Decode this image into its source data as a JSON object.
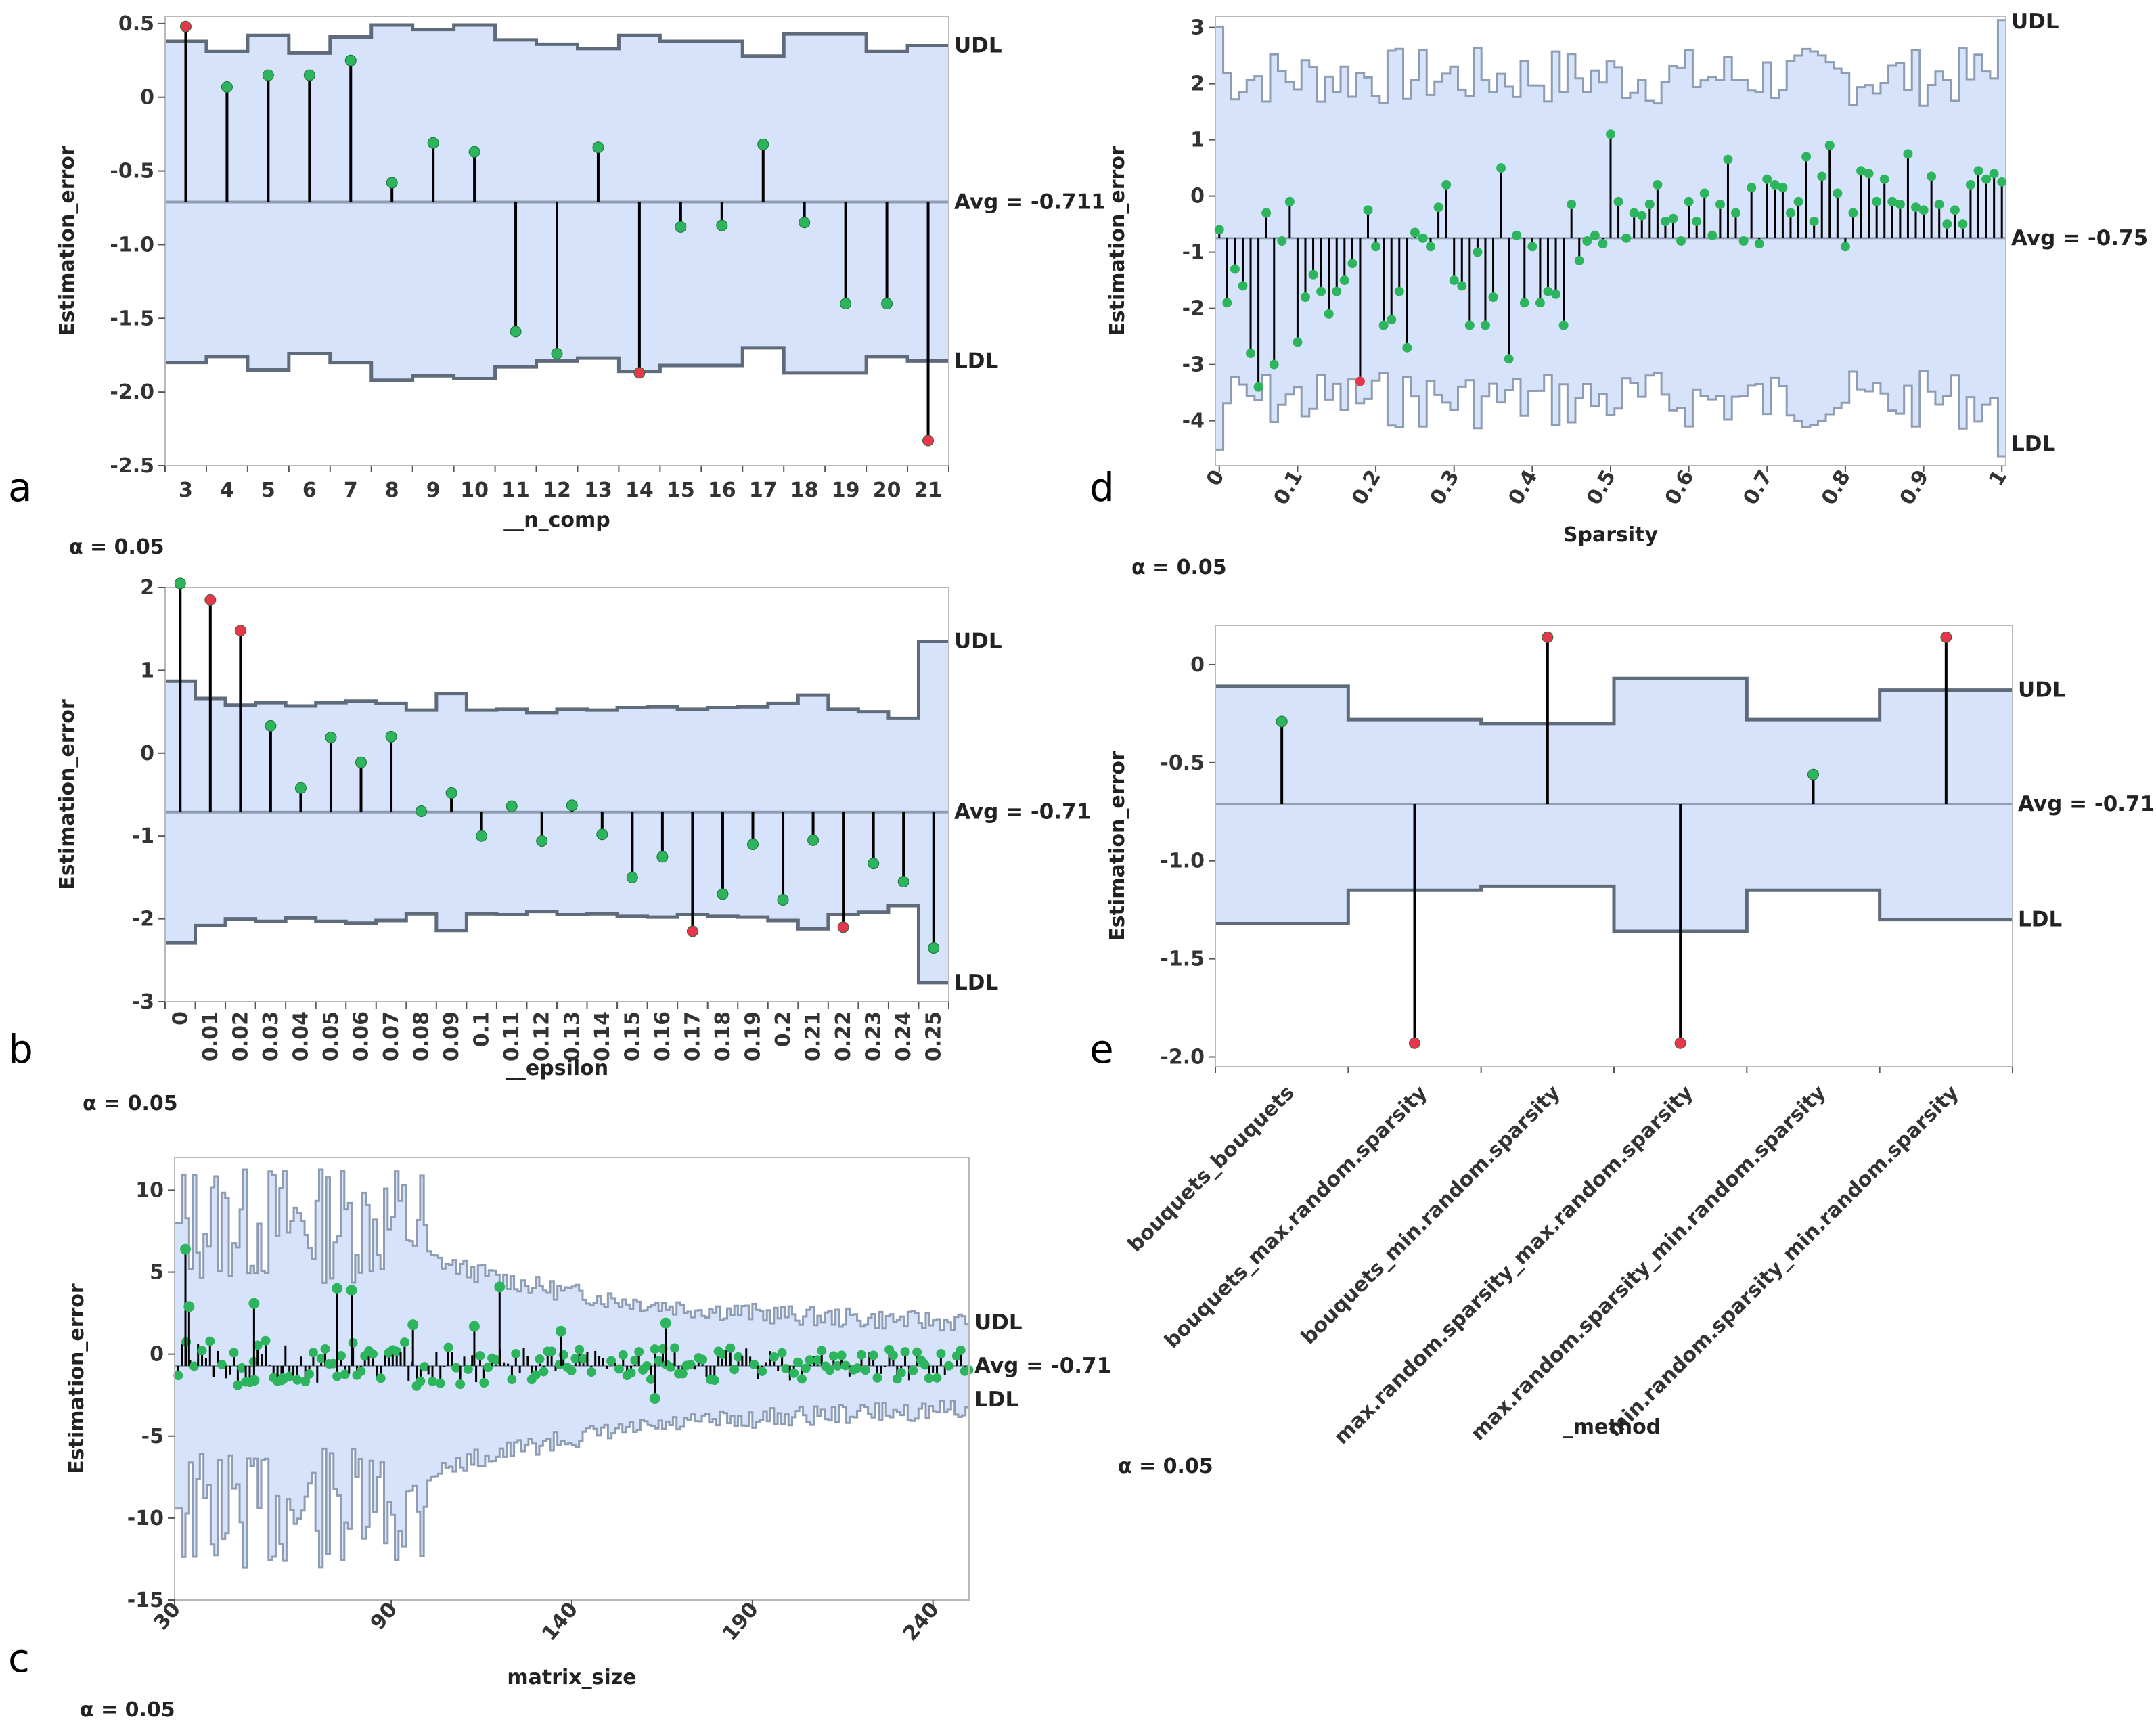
{
  "chart_data": [
    {
      "type": "line",
      "subtype": "control-chart-needle",
      "panel": "a",
      "xlabel": "__n_comp",
      "ylabel": "Estimation_error",
      "alpha_label": "α = 0.05",
      "avg_label": "Avg = -0.711",
      "udl_label": "UDL",
      "ldl_label": "LDL",
      "avg": -0.711,
      "ylim": [
        -2.5,
        0.55
      ],
      "yticks": [
        0.5,
        0,
        -0.5,
        -1.0,
        -1.5,
        -2.0,
        -2.5
      ],
      "ytick_labels": [
        "0.5",
        "0",
        "-0.5",
        "-1.0",
        "-1.5",
        "-2.0",
        "-2.5"
      ],
      "categories": [
        "3",
        "4",
        "5",
        "6",
        "7",
        "8",
        "9",
        "10",
        "11",
        "12",
        "13",
        "14",
        "15",
        "16",
        "17",
        "18",
        "19",
        "20",
        "21"
      ],
      "values": [
        0.48,
        0.07,
        0.15,
        0.15,
        0.25,
        -0.58,
        -0.31,
        -0.37,
        -1.59,
        -1.74,
        -0.34,
        -1.87,
        -0.88,
        -0.87,
        -0.32,
        -0.85,
        -1.4,
        -1.4,
        -2.33
      ],
      "udl": [
        0.38,
        0.31,
        0.42,
        0.3,
        0.41,
        0.49,
        0.46,
        0.49,
        0.39,
        0.36,
        0.33,
        0.42,
        0.38,
        0.38,
        0.28,
        0.43,
        0.43,
        0.31,
        0.35
      ],
      "ldl": [
        -1.8,
        -1.76,
        -1.85,
        -1.74,
        -1.8,
        -1.92,
        -1.89,
        -1.91,
        -1.83,
        -1.79,
        -1.77,
        -1.86,
        -1.82,
        -1.82,
        -1.7,
        -1.87,
        -1.87,
        -1.76,
        -1.79
      ],
      "colors": {
        "point": "#2db55d",
        "alarm": "#e8364b",
        "fill": "#d7e3fb",
        "limit": "#5f6b7a",
        "avg": "#8e9db2"
      }
    },
    {
      "type": "line",
      "subtype": "control-chart-needle",
      "panel": "b",
      "xlabel": "__epsilon",
      "ylabel": "Estimation_error",
      "alpha_label": "α = 0.05",
      "avg_label": "Avg = -0.71",
      "udl_label": "UDL",
      "ldl_label": "LDL",
      "avg": -0.71,
      "ylim": [
        -3.0,
        2.0
      ],
      "yticks": [
        2,
        1,
        0,
        -1,
        -2,
        -3
      ],
      "ytick_labels": [
        "2",
        "1",
        "0",
        "-1",
        "-2",
        "-3"
      ],
      "categories": [
        "0",
        "0.01",
        "0.02",
        "0.03",
        "0.04",
        "0.05",
        "0.06",
        "0.07",
        "0.08",
        "0.09",
        "0.1",
        "0.11",
        "0.12",
        "0.13",
        "0.14",
        "0.15",
        "0.16",
        "0.17",
        "0.18",
        "0.19",
        "0.2",
        "0.21",
        "0.22",
        "0.23",
        "0.24",
        "0.25"
      ],
      "values": [
        2.05,
        1.85,
        1.48,
        0.33,
        -0.42,
        0.19,
        -0.11,
        0.2,
        -0.7,
        -0.48,
        -1.0,
        -0.64,
        -1.06,
        -0.63,
        -0.98,
        -1.5,
        -1.25,
        -2.15,
        -1.7,
        -1.1,
        -1.77,
        -1.05,
        -2.1,
        -1.33,
        -1.55,
        -2.35
      ],
      "udl": [
        0.87,
        0.66,
        0.58,
        0.61,
        0.57,
        0.61,
        0.63,
        0.6,
        0.52,
        0.72,
        0.52,
        0.53,
        0.49,
        0.53,
        0.52,
        0.55,
        0.56,
        0.53,
        0.55,
        0.56,
        0.6,
        0.7,
        0.53,
        0.5,
        0.42,
        1.35
      ],
      "ldl": [
        -2.29,
        -2.08,
        -2.0,
        -2.03,
        -1.99,
        -2.03,
        -2.05,
        -2.02,
        -1.94,
        -2.14,
        -1.94,
        -1.95,
        -1.91,
        -1.95,
        -1.94,
        -1.97,
        -1.98,
        -1.95,
        -1.97,
        -1.98,
        -2.02,
        -2.12,
        -1.95,
        -1.92,
        -1.84,
        -2.77
      ],
      "alarms": [
        1,
        2,
        17,
        22
      ],
      "colors": {
        "point": "#2db55d",
        "alarm": "#e8364b",
        "fill": "#d7e3fb",
        "limit": "#5f6b7a",
        "avg": "#8e9db2"
      }
    },
    {
      "type": "line",
      "subtype": "control-chart-needle",
      "panel": "c",
      "xlabel": "matrix_size",
      "ylabel": "Estimation_error",
      "alpha_label": "α = 0.05",
      "avg_label": "Avg = -0.71",
      "udl_label": "UDL",
      "ldl_label": "LDL",
      "avg": -0.71,
      "ylim": [
        -15,
        12
      ],
      "yticks": [
        10,
        5,
        0,
        -5,
        -10,
        -15
      ],
      "ytick_labels": [
        "10",
        "5",
        "0",
        "-5",
        "-10",
        "-15"
      ],
      "xlim": [
        30,
        250
      ],
      "xticks": [
        30,
        90,
        140,
        190,
        240
      ],
      "xtick_labels": [
        "30",
        "90",
        "140",
        "190",
        "240"
      ],
      "highlighted": [
        {
          "x": 33,
          "y": 6.4
        },
        {
          "x": 34,
          "y": 2.9
        },
        {
          "x": 52,
          "y": 3.1
        },
        {
          "x": 75,
          "y": 4.0
        },
        {
          "x": 79,
          "y": 3.9
        },
        {
          "x": 120,
          "y": 4.1
        },
        {
          "x": 96,
          "y": 1.8
        },
        {
          "x": 113,
          "y": 1.7
        },
        {
          "x": 137,
          "y": 1.4
        },
        {
          "x": 163,
          "y": -2.7
        },
        {
          "x": 166,
          "y": 1.9
        },
        {
          "x": 60,
          "y": -1.5
        },
        {
          "x": 52,
          "y": -1.6
        }
      ],
      "colors": {
        "point": "#2db55d",
        "alarm": "#e8364b",
        "fill": "#d7e3fb",
        "limit": "#8e9db2",
        "avg": "#8e9db2"
      }
    },
    {
      "type": "line",
      "subtype": "control-chart-needle",
      "panel": "d",
      "xlabel": "Sparsity",
      "ylabel": "Estimation_error",
      "alpha_label": "α = 0.05",
      "avg_label": "Avg = -0.75",
      "udl_label": "UDL",
      "ldl_label": "LDL",
      "avg": -0.75,
      "ylim": [
        -4.8,
        3.2
      ],
      "yticks": [
        3,
        2,
        1,
        0,
        -1,
        -2,
        -3,
        -4
      ],
      "ytick_labels": [
        "3",
        "2",
        "1",
        "0",
        "-1",
        "-2",
        "-3",
        "-4"
      ],
      "xlim": [
        0,
        1
      ],
      "xticks": [
        0,
        0.1,
        0.2,
        0.3,
        0.4,
        0.5,
        0.6,
        0.7,
        0.8,
        0.9,
        1
      ],
      "xtick_labels": [
        "0",
        "0.1",
        "0.2",
        "0.3",
        "0.4",
        "0.5",
        "0.6",
        "0.7",
        "0.8",
        "0.9",
        "1"
      ],
      "x": [
        0.0,
        0.01,
        0.02,
        0.03,
        0.04,
        0.05,
        0.06,
        0.07,
        0.08,
        0.09,
        0.1,
        0.11,
        0.12,
        0.13,
        0.14,
        0.15,
        0.16,
        0.17,
        0.18,
        0.19,
        0.2,
        0.21,
        0.22,
        0.23,
        0.24,
        0.25,
        0.26,
        0.27,
        0.28,
        0.29,
        0.3,
        0.31,
        0.32,
        0.33,
        0.34,
        0.35,
        0.36,
        0.37,
        0.38,
        0.39,
        0.4,
        0.41,
        0.42,
        0.43,
        0.44,
        0.45,
        0.46,
        0.47,
        0.48,
        0.49,
        0.5,
        0.51,
        0.52,
        0.53,
        0.54,
        0.55,
        0.56,
        0.57,
        0.58,
        0.59,
        0.6,
        0.61,
        0.62,
        0.63,
        0.64,
        0.65,
        0.66,
        0.67,
        0.68,
        0.69,
        0.7,
        0.71,
        0.72,
        0.73,
        0.74,
        0.75,
        0.76,
        0.77,
        0.78,
        0.79,
        0.8,
        0.81,
        0.82,
        0.83,
        0.84,
        0.85,
        0.86,
        0.87,
        0.88,
        0.89,
        0.9,
        0.91,
        0.92,
        0.93,
        0.94,
        0.95,
        0.96,
        0.97,
        0.98,
        0.99,
        1.0
      ],
      "values": [
        -0.6,
        -1.9,
        -1.3,
        -1.6,
        -2.8,
        -3.4,
        -0.3,
        -3.0,
        -0.8,
        -0.1,
        -2.6,
        -1.8,
        -1.4,
        -1.7,
        -2.1,
        -1.7,
        -1.5,
        -1.2,
        -3.3,
        -0.25,
        -0.9,
        -2.3,
        -2.2,
        -1.7,
        -2.7,
        -0.65,
        -0.75,
        -0.9,
        -0.2,
        0.2,
        -1.5,
        -1.6,
        -2.3,
        -1.0,
        -2.3,
        -1.8,
        0.5,
        -2.9,
        -0.7,
        -1.9,
        -0.9,
        -1.9,
        -1.7,
        -1.75,
        -2.3,
        -0.15,
        -1.15,
        -0.8,
        -0.7,
        -0.85,
        1.1,
        -0.1,
        -0.75,
        -0.3,
        -0.35,
        -0.15,
        0.2,
        -0.45,
        -0.4,
        -0.8,
        -0.1,
        -0.45,
        0.05,
        -0.7,
        -0.15,
        0.65,
        -0.3,
        -0.8,
        0.15,
        -0.85,
        0.3,
        0.2,
        0.15,
        -0.3,
        -0.1,
        0.7,
        -0.45,
        0.35,
        0.9,
        0.05,
        -0.9,
        -0.3,
        0.45,
        0.4,
        -0.1,
        0.3,
        -0.1,
        -0.15,
        0.75,
        -0.2,
        -0.25,
        0.35,
        -0.15,
        -0.5,
        -0.25,
        -0.5,
        0.2,
        0.45,
        0.3,
        0.4,
        0.25
      ],
      "alarms": [
        18
      ],
      "colors": {
        "point": "#2db55d",
        "alarm": "#e8364b",
        "fill": "#d7e3fb",
        "limit": "#8e9db2",
        "avg": "#8e9db2"
      }
    },
    {
      "type": "line",
      "subtype": "control-chart-needle",
      "panel": "e",
      "xlabel": "_method",
      "ylabel": "Estimation_error",
      "alpha_label": "α = 0.05",
      "avg_label": "Avg = -0.711",
      "udl_label": "UDL",
      "ldl_label": "LDL",
      "avg": -0.711,
      "ylim": [
        -2.05,
        0.2
      ],
      "yticks": [
        0,
        -0.5,
        -1.0,
        -1.5,
        -2.0
      ],
      "ytick_labels": [
        "0",
        "-0.5",
        "-1.0",
        "-1.5",
        "-2.0"
      ],
      "categories": [
        "bouquets_bouquets",
        "bouquets_max.random.sparsity",
        "bouquets_min.random.sparsity",
        "max.random.sparsity_max.random.sparsity",
        "max.random.sparsity_min.random.sparsity",
        "min.random.sparsity_min.random.sparsity"
      ],
      "points": [
        {
          "cat": 0,
          "y": -0.29
        },
        {
          "cat": 1,
          "y": -1.93
        },
        {
          "cat": 2,
          "y": 0.14
        },
        {
          "cat": 3,
          "y": -1.93
        },
        {
          "cat": 4,
          "y": -0.56
        },
        {
          "cat": 5,
          "y": 0.14
        }
      ],
      "udl": [
        -0.11,
        -0.28,
        -0.3,
        -0.07,
        -0.28,
        -0.13
      ],
      "ldl": [
        -1.32,
        -1.15,
        -1.13,
        -1.36,
        -1.15,
        -1.3
      ],
      "alarms": [
        1,
        2,
        3,
        5
      ],
      "colors": {
        "point": "#2db55d",
        "alarm": "#e8364b",
        "fill": "#d7e3fb",
        "limit": "#5f6b7a",
        "avg": "#8e9db2"
      }
    }
  ],
  "panel_letters": [
    "a",
    "b",
    "c",
    "d",
    "e"
  ]
}
